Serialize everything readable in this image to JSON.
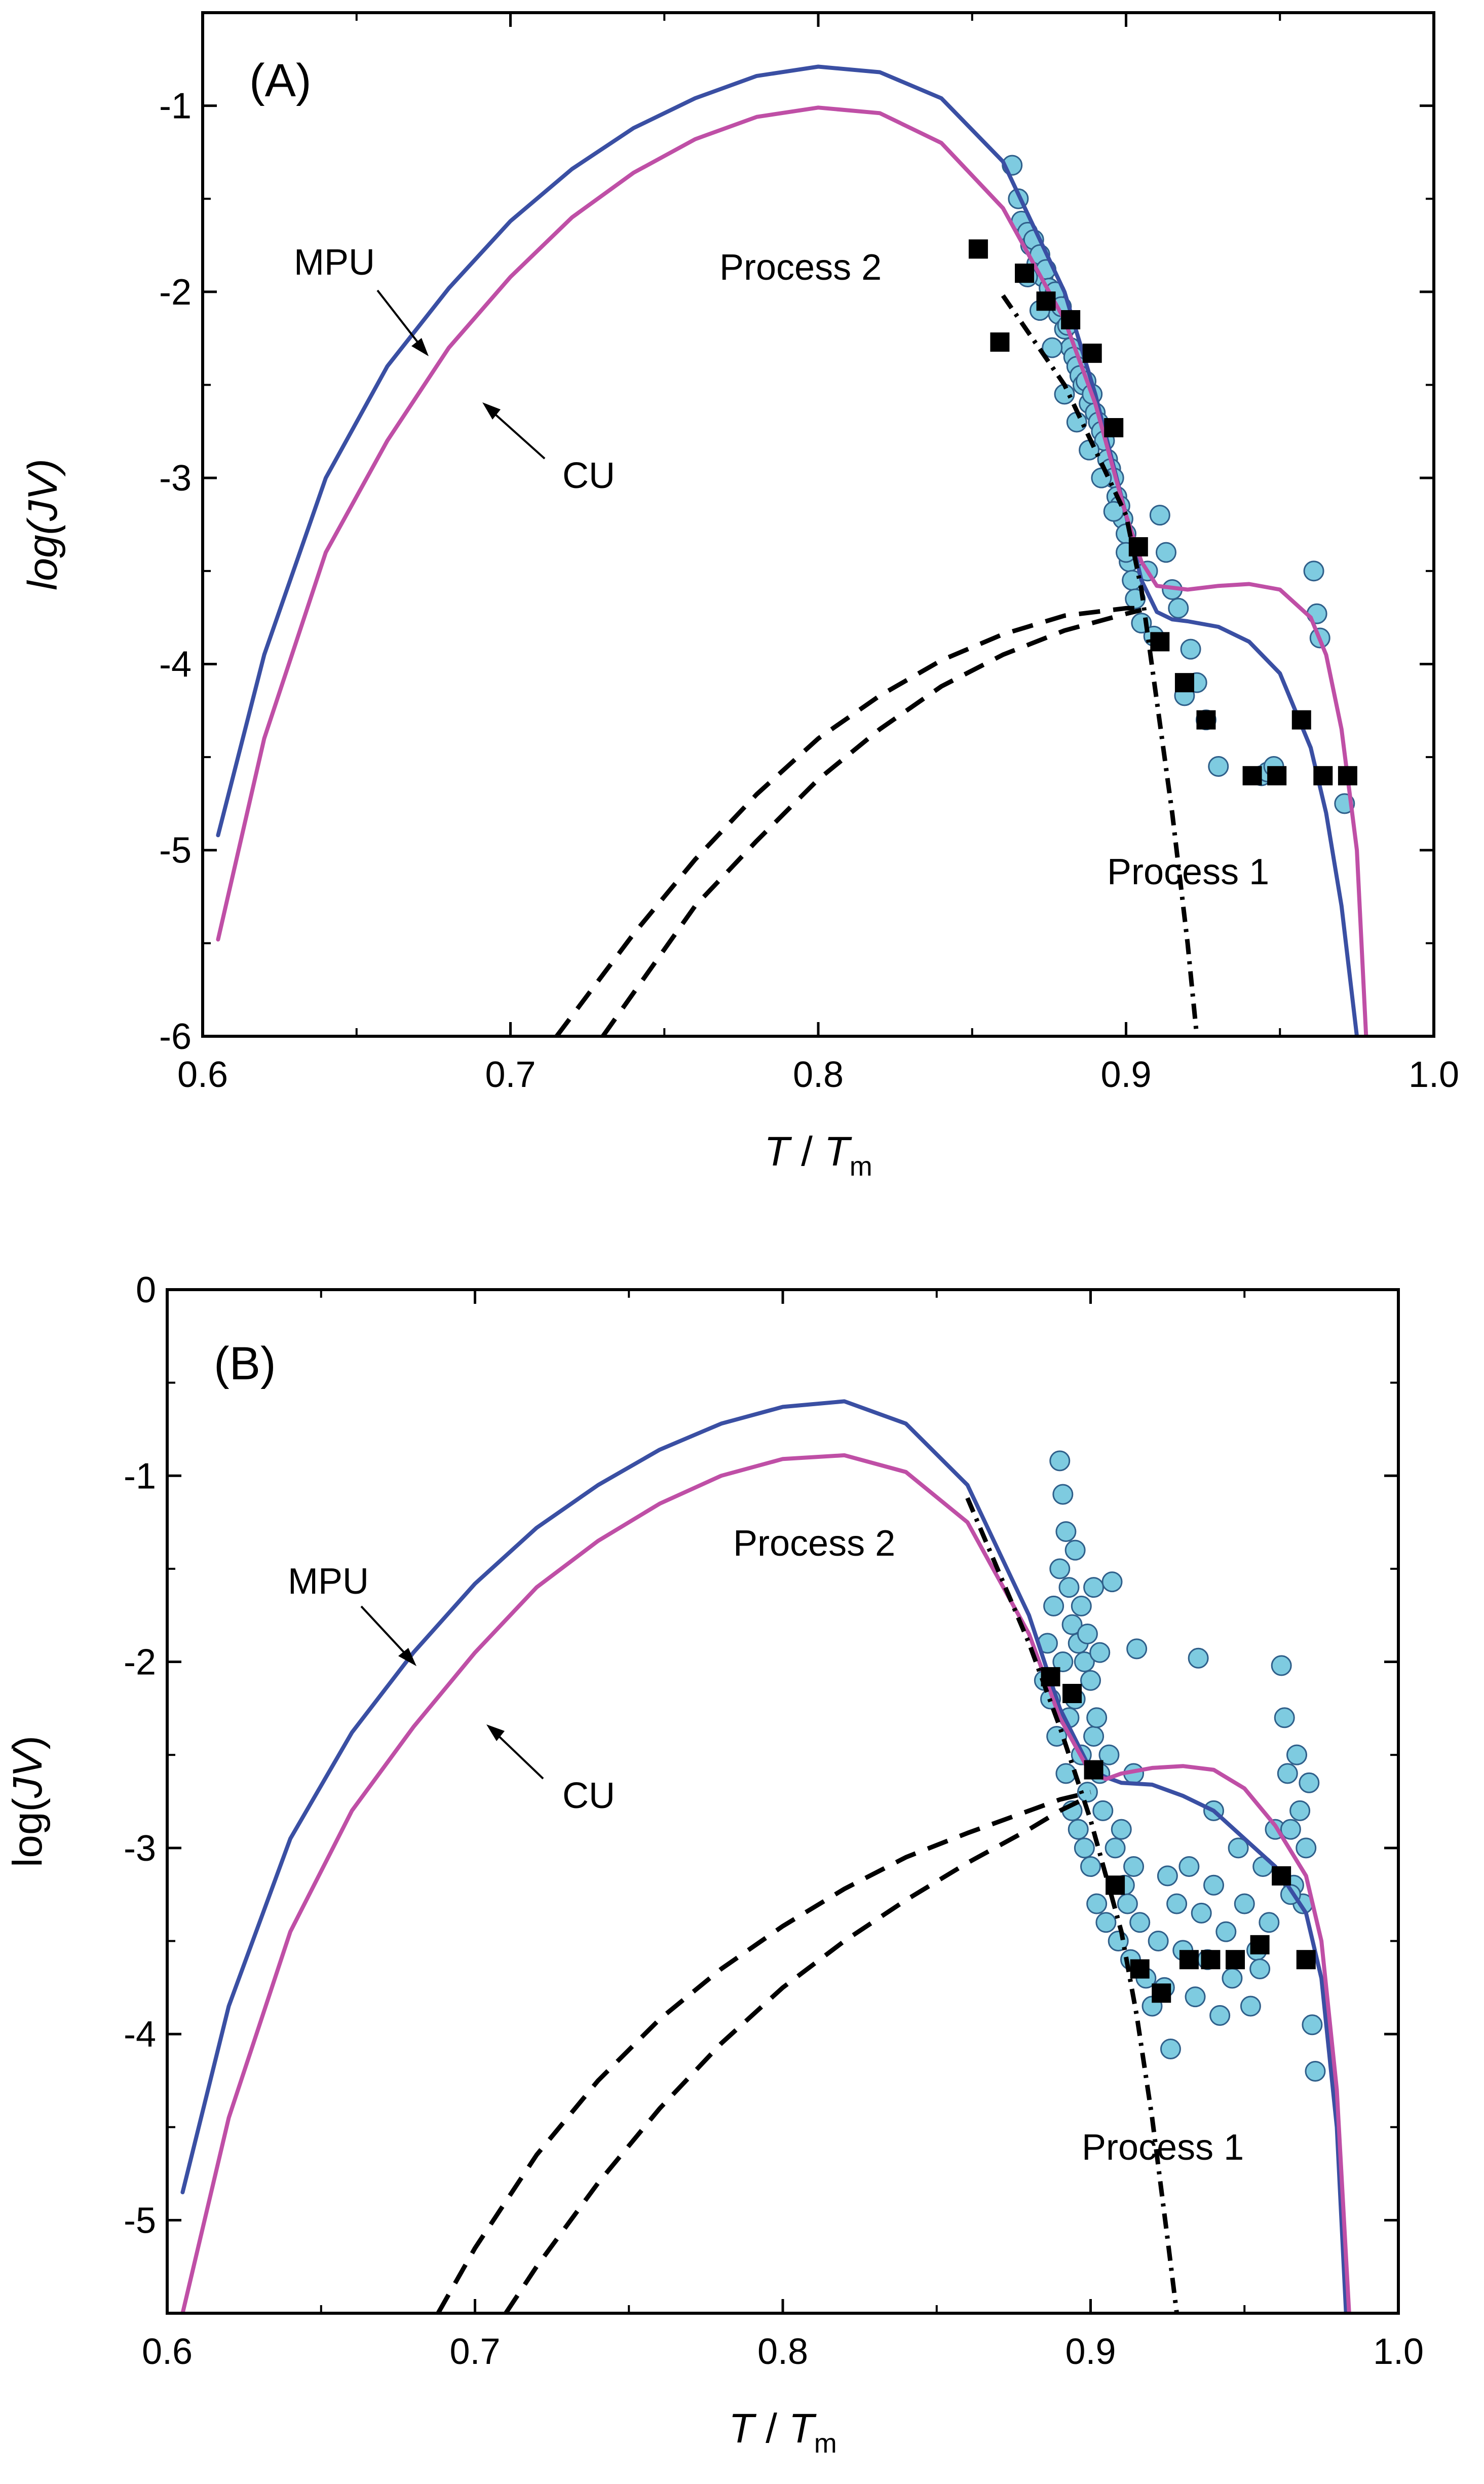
{
  "chart_data": [
    {
      "type": "line",
      "panel_label": "(A)",
      "xlabel": {
        "main": "T",
        "sep": " / ",
        "base": "T",
        "sub": "m"
      },
      "ylabel": {
        "prefix": "log(",
        "var": "JV",
        "suffix": ")"
      },
      "xlim": [
        0.6,
        1.0
      ],
      "ylim": [
        -6,
        -0.5
      ],
      "xticks": [
        0.6,
        0.7,
        0.8,
        0.9,
        1.0
      ],
      "xtick_labels": [
        "0.6",
        "0.7",
        "0.8",
        "0.9",
        "1.0"
      ],
      "yticks": [
        -6,
        -5,
        -4,
        -3,
        -2,
        -1
      ],
      "ytick_labels": [
        "-6",
        "-5",
        "-4",
        "-3",
        "-2",
        "-1"
      ],
      "annotations": {
        "mpu": "MPU",
        "cu": "CU",
        "process1": "Process 1",
        "process2": "Process 2"
      },
      "colors": {
        "mpu": "#3a4fa3",
        "cu": "#bf4fa6",
        "circle_fill": "#7ecbe0",
        "circle_edge": "#2f5f8a",
        "square": "#000000",
        "dashed": "#000000"
      },
      "series": [
        {
          "name": "MPU",
          "style": "solid-blue",
          "x": [
            0.605,
            0.62,
            0.64,
            0.66,
            0.68,
            0.7,
            0.72,
            0.74,
            0.76,
            0.78,
            0.8,
            0.82,
            0.84,
            0.86,
            0.88,
            0.89,
            0.9,
            0.905,
            0.91,
            0.915,
            0.92,
            0.93,
            0.94,
            0.95,
            0.96,
            0.965,
            0.97,
            0.975
          ],
          "y": [
            -4.92,
            -3.95,
            -3.0,
            -2.4,
            -1.98,
            -1.62,
            -1.34,
            -1.12,
            -0.96,
            -0.84,
            -0.79,
            -0.82,
            -0.96,
            -1.3,
            -2.0,
            -2.55,
            -3.2,
            -3.55,
            -3.72,
            -3.76,
            -3.77,
            -3.8,
            -3.88,
            -4.05,
            -4.45,
            -4.8,
            -5.3,
            -6.0
          ]
        },
        {
          "name": "CU",
          "style": "solid-magenta",
          "x": [
            0.605,
            0.62,
            0.64,
            0.66,
            0.68,
            0.7,
            0.72,
            0.74,
            0.76,
            0.78,
            0.8,
            0.82,
            0.84,
            0.86,
            0.88,
            0.89,
            0.9,
            0.905,
            0.91,
            0.92,
            0.93,
            0.94,
            0.95,
            0.96,
            0.965,
            0.97,
            0.975,
            0.978
          ],
          "y": [
            -5.48,
            -4.4,
            -3.4,
            -2.8,
            -2.3,
            -1.92,
            -1.6,
            -1.36,
            -1.18,
            -1.06,
            -1.01,
            -1.04,
            -1.2,
            -1.55,
            -2.15,
            -2.6,
            -3.2,
            -3.45,
            -3.58,
            -3.6,
            -3.58,
            -3.57,
            -3.6,
            -3.75,
            -3.95,
            -4.35,
            -5.0,
            -6.0
          ]
        },
        {
          "name": "Process 1 (nucleation)",
          "style": "dashdot",
          "x": [
            0.86,
            0.88,
            0.9,
            0.905,
            0.91,
            0.915,
            0.92,
            0.923
          ],
          "y": [
            -2.02,
            -2.5,
            -3.2,
            -3.6,
            -4.2,
            -4.8,
            -5.5,
            -6.0
          ]
        },
        {
          "name": "Process 2 (upper dashed)",
          "style": "dashed",
          "x": [
            0.715,
            0.74,
            0.76,
            0.78,
            0.8,
            0.82,
            0.84,
            0.86,
            0.88,
            0.9,
            0.905
          ],
          "y": [
            -6.0,
            -5.45,
            -5.05,
            -4.7,
            -4.4,
            -4.17,
            -3.98,
            -3.84,
            -3.74,
            -3.7,
            -3.7
          ]
        },
        {
          "name": "Process 2 (lower dashed)",
          "style": "dashed",
          "x": [
            0.73,
            0.76,
            0.78,
            0.8,
            0.82,
            0.84,
            0.86,
            0.88,
            0.9,
            0.905
          ],
          "y": [
            -6.0,
            -5.3,
            -4.95,
            -4.62,
            -4.35,
            -4.12,
            -3.95,
            -3.82,
            -3.73,
            -3.71
          ]
        },
        {
          "name": "Squares",
          "style": "square",
          "x": [
            0.852,
            0.859,
            0.867,
            0.874,
            0.882,
            0.889,
            0.896,
            0.904,
            0.911,
            0.919,
            0.926,
            0.941,
            0.949,
            0.957,
            0.964,
            0.972
          ],
          "y": [
            -1.77,
            -2.27,
            -1.9,
            -2.05,
            -2.15,
            -2.33,
            -2.73,
            -3.37,
            -3.88,
            -4.1,
            -4.3,
            -4.6,
            -4.6,
            -4.3,
            -4.6,
            -4.6
          ]
        },
        {
          "name": "Circles",
          "style": "circle",
          "x": [
            0.863,
            0.865,
            0.866,
            0.868,
            0.869,
            0.87,
            0.871,
            0.872,
            0.873,
            0.874,
            0.875,
            0.876,
            0.877,
            0.878,
            0.879,
            0.88,
            0.881,
            0.882,
            0.883,
            0.884,
            0.885,
            0.886,
            0.887,
            0.888,
            0.889,
            0.89,
            0.891,
            0.892,
            0.893,
            0.894,
            0.895,
            0.896,
            0.897,
            0.898,
            0.899,
            0.9,
            0.901,
            0.902,
            0.903,
            0.868,
            0.872,
            0.876,
            0.88,
            0.884,
            0.888,
            0.892,
            0.896,
            0.9,
            0.905,
            0.907,
            0.909,
            0.911,
            0.913,
            0.915,
            0.917,
            0.919,
            0.921,
            0.923,
            0.926,
            0.93,
            0.944,
            0.946,
            0.948,
            0.961,
            0.962,
            0.963,
            0.971
          ],
          "y": [
            -1.32,
            -1.5,
            -1.62,
            -1.68,
            -1.75,
            -1.72,
            -1.85,
            -1.8,
            -1.92,
            -1.88,
            -1.98,
            -2.05,
            -2.0,
            -2.12,
            -2.08,
            -2.2,
            -2.18,
            -2.3,
            -2.35,
            -2.4,
            -2.45,
            -2.5,
            -2.48,
            -2.6,
            -2.55,
            -2.65,
            -2.7,
            -2.75,
            -2.8,
            -2.9,
            -2.95,
            -3.0,
            -3.1,
            -3.15,
            -3.22,
            -3.3,
            -3.45,
            -3.55,
            -3.65,
            -1.92,
            -2.1,
            -2.3,
            -2.55,
            -2.7,
            -2.85,
            -3.0,
            -3.18,
            -3.4,
            -3.78,
            -3.5,
            -3.85,
            -3.2,
            -3.4,
            -3.6,
            -3.7,
            -4.17,
            -3.92,
            -4.1,
            -4.3,
            -4.55,
            -4.6,
            -4.58,
            -4.55,
            -3.5,
            -3.73,
            -3.86,
            -4.75
          ]
        }
      ]
    },
    {
      "type": "line",
      "panel_label": "(B)",
      "xlabel": {
        "main": "T",
        "sep": " / ",
        "base": "T",
        "sub": "m"
      },
      "ylabel": {
        "prefix": "log(",
        "var": "JV",
        "suffix": ")"
      },
      "xlim": [
        0.6,
        1.0
      ],
      "ylim": [
        -5.5,
        0
      ],
      "xticks": [
        0.6,
        0.7,
        0.8,
        0.9,
        1.0
      ],
      "xtick_labels": [
        "0.6",
        "0.7",
        "0.8",
        "0.9",
        "1.0"
      ],
      "yticks": [
        -5,
        -4,
        -3,
        -2,
        -1,
        0
      ],
      "ytick_labels": [
        "-5",
        "-4",
        "-3",
        "-2",
        "-1",
        "0"
      ],
      "annotations": {
        "mpu": "MPU",
        "cu": "CU",
        "process1": "Process 1",
        "process2": "Process 2"
      },
      "colors": {
        "mpu": "#3a4fa3",
        "cu": "#bf4fa6",
        "circle_fill": "#7ecbe0",
        "circle_edge": "#2f5f8a",
        "square": "#000000",
        "dashed": "#000000"
      },
      "series": [
        {
          "name": "MPU",
          "style": "solid-blue",
          "x": [
            0.605,
            0.62,
            0.64,
            0.66,
            0.68,
            0.7,
            0.72,
            0.74,
            0.76,
            0.78,
            0.8,
            0.82,
            0.84,
            0.86,
            0.88,
            0.89,
            0.9,
            0.905,
            0.91,
            0.92,
            0.93,
            0.94,
            0.95,
            0.96,
            0.97,
            0.975,
            0.98,
            0.983
          ],
          "y": [
            -4.85,
            -3.85,
            -2.95,
            -2.38,
            -1.95,
            -1.58,
            -1.28,
            -1.05,
            -0.86,
            -0.72,
            -0.63,
            -0.6,
            -0.72,
            -1.05,
            -1.75,
            -2.25,
            -2.58,
            -2.62,
            -2.65,
            -2.66,
            -2.72,
            -2.8,
            -2.95,
            -3.1,
            -3.35,
            -3.7,
            -4.5,
            -5.5
          ]
        },
        {
          "name": "CU",
          "style": "solid-magenta",
          "x": [
            0.605,
            0.62,
            0.64,
            0.66,
            0.68,
            0.7,
            0.72,
            0.74,
            0.76,
            0.78,
            0.8,
            0.82,
            0.84,
            0.86,
            0.88,
            0.89,
            0.9,
            0.905,
            0.91,
            0.92,
            0.93,
            0.94,
            0.95,
            0.96,
            0.97,
            0.975,
            0.98,
            0.984
          ],
          "y": [
            -5.5,
            -4.45,
            -3.45,
            -2.8,
            -2.35,
            -1.95,
            -1.6,
            -1.35,
            -1.15,
            -1.0,
            -0.91,
            -0.89,
            -0.98,
            -1.25,
            -1.85,
            -2.3,
            -2.6,
            -2.63,
            -2.6,
            -2.57,
            -2.56,
            -2.58,
            -2.68,
            -2.88,
            -3.15,
            -3.5,
            -4.3,
            -5.5
          ]
        },
        {
          "name": "Process 1 (nucleation)",
          "style": "dashdot",
          "x": [
            0.86,
            0.88,
            0.89,
            0.9,
            0.91,
            0.915,
            0.92,
            0.925,
            0.928
          ],
          "y": [
            -1.12,
            -1.9,
            -2.35,
            -2.85,
            -3.45,
            -3.9,
            -4.45,
            -5.1,
            -5.5
          ]
        },
        {
          "name": "Process 2 (upper dashed)",
          "style": "dashed",
          "x": [
            0.688,
            0.7,
            0.72,
            0.74,
            0.76,
            0.78,
            0.8,
            0.82,
            0.84,
            0.86,
            0.88,
            0.89,
            0.9
          ],
          "y": [
            -5.5,
            -5.15,
            -4.65,
            -4.25,
            -3.92,
            -3.65,
            -3.42,
            -3.22,
            -3.05,
            -2.92,
            -2.8,
            -2.74,
            -2.7
          ]
        },
        {
          "name": "Process 2 (lower dashed)",
          "style": "dashed",
          "x": [
            0.71,
            0.72,
            0.74,
            0.76,
            0.78,
            0.8,
            0.82,
            0.84,
            0.86,
            0.88,
            0.89,
            0.9
          ],
          "y": [
            -5.5,
            -5.25,
            -4.8,
            -4.4,
            -4.05,
            -3.75,
            -3.5,
            -3.28,
            -3.08,
            -2.9,
            -2.8,
            -2.72
          ]
        },
        {
          "name": "Squares",
          "style": "square",
          "x": [
            0.887,
            0.894,
            0.901,
            0.908,
            0.916,
            0.923,
            0.932,
            0.939,
            0.947,
            0.955,
            0.962,
            0.97
          ],
          "y": [
            -2.08,
            -2.17,
            -2.58,
            -3.2,
            -3.65,
            -3.78,
            -3.6,
            -3.6,
            -3.6,
            -3.52,
            -3.15,
            -3.6
          ]
        },
        {
          "name": "Circles",
          "style": "circle",
          "x": [
            0.885,
            0.886,
            0.887,
            0.888,
            0.889,
            0.89,
            0.89,
            0.891,
            0.891,
            0.892,
            0.892,
            0.893,
            0.893,
            0.894,
            0.894,
            0.895,
            0.895,
            0.896,
            0.896,
            0.897,
            0.897,
            0.898,
            0.898,
            0.899,
            0.899,
            0.9,
            0.9,
            0.901,
            0.901,
            0.902,
            0.902,
            0.903,
            0.903,
            0.904,
            0.905,
            0.906,
            0.907,
            0.908,
            0.909,
            0.91,
            0.911,
            0.912,
            0.913,
            0.914,
            0.915,
            0.916,
            0.918,
            0.92,
            0.922,
            0.924,
            0.926,
            0.928,
            0.93,
            0.932,
            0.934,
            0.936,
            0.938,
            0.94,
            0.942,
            0.944,
            0.946,
            0.948,
            0.95,
            0.952,
            0.954,
            0.956,
            0.958,
            0.96,
            0.962,
            0.963,
            0.964,
            0.965,
            0.966,
            0.967,
            0.968,
            0.969,
            0.97,
            0.971,
            0.972,
            0.973,
            0.935,
            0.914,
            0.925,
            0.94,
            0.955,
            0.965
          ],
          "y": [
            -2.1,
            -1.9,
            -2.2,
            -1.7,
            -2.4,
            -0.92,
            -1.5,
            -1.1,
            -2.0,
            -1.3,
            -2.6,
            -1.6,
            -2.3,
            -1.8,
            -2.8,
            -1.4,
            -2.2,
            -1.9,
            -2.9,
            -1.7,
            -2.5,
            -2.0,
            -3.0,
            -1.85,
            -2.7,
            -2.1,
            -3.1,
            -1.6,
            -2.4,
            -2.3,
            -3.3,
            -1.95,
            -2.6,
            -2.8,
            -3.4,
            -2.5,
            -1.57,
            -3.0,
            -3.5,
            -2.9,
            -3.2,
            -3.3,
            -3.6,
            -3.1,
            -1.93,
            -3.4,
            -3.7,
            -3.85,
            -3.5,
            -3.75,
            -4.08,
            -3.3,
            -3.55,
            -3.1,
            -3.8,
            -3.35,
            -3.6,
            -3.2,
            -3.9,
            -3.45,
            -3.7,
            -3.0,
            -3.3,
            -3.85,
            -3.55,
            -3.1,
            -3.4,
            -2.9,
            -2.02,
            -2.3,
            -2.6,
            -2.9,
            -3.2,
            -2.5,
            -2.8,
            -3.3,
            -3.0,
            -2.65,
            -3.95,
            -4.2,
            -1.98,
            -2.6,
            -3.15,
            -2.8,
            -3.65,
            -3.25
          ]
        }
      ]
    }
  ]
}
